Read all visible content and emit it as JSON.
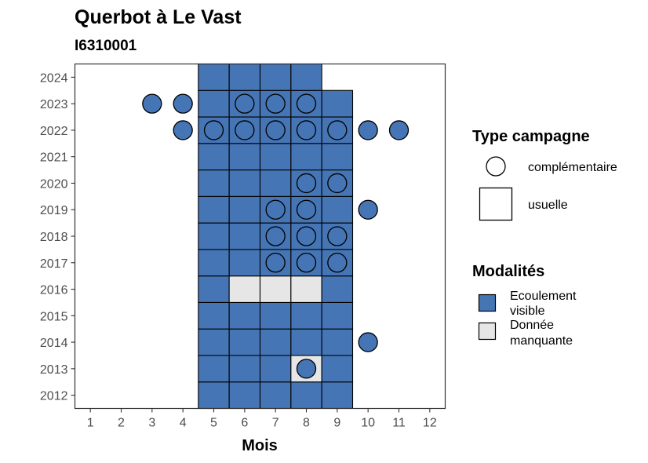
{
  "chart_data": {
    "type": "heatmap",
    "title": "Querbot à Le Vast",
    "subtitle": "I6310001",
    "xlabel": "Mois",
    "ylabel": "",
    "x_ticks": [
      1,
      2,
      3,
      4,
      5,
      6,
      7,
      8,
      9,
      10,
      11,
      12
    ],
    "y_ticks": [
      2012,
      2013,
      2014,
      2015,
      2016,
      2017,
      2018,
      2019,
      2020,
      2021,
      2022,
      2023,
      2024
    ],
    "xlim": [
      0.5,
      12.5
    ],
    "ylim": [
      2011.5,
      2024.5
    ],
    "grid": false,
    "colors": {
      "Ecoulement visible": "#4575b4",
      "Donnée manquante": "#e6e6e6"
    },
    "tiles": [
      {
        "year": 2012,
        "month": 5,
        "modalite": "Ecoulement visible"
      },
      {
        "year": 2012,
        "month": 6,
        "modalite": "Ecoulement visible"
      },
      {
        "year": 2012,
        "month": 7,
        "modalite": "Ecoulement visible"
      },
      {
        "year": 2012,
        "month": 8,
        "modalite": "Ecoulement visible"
      },
      {
        "year": 2012,
        "month": 9,
        "modalite": "Ecoulement visible"
      },
      {
        "year": 2013,
        "month": 5,
        "modalite": "Ecoulement visible"
      },
      {
        "year": 2013,
        "month": 6,
        "modalite": "Ecoulement visible"
      },
      {
        "year": 2013,
        "month": 7,
        "modalite": "Ecoulement visible"
      },
      {
        "year": 2013,
        "month": 8,
        "modalite": "Donnée manquante"
      },
      {
        "year": 2013,
        "month": 9,
        "modalite": "Ecoulement visible"
      },
      {
        "year": 2014,
        "month": 5,
        "modalite": "Ecoulement visible"
      },
      {
        "year": 2014,
        "month": 6,
        "modalite": "Ecoulement visible"
      },
      {
        "year": 2014,
        "month": 7,
        "modalite": "Ecoulement visible"
      },
      {
        "year": 2014,
        "month": 8,
        "modalite": "Ecoulement visible"
      },
      {
        "year": 2014,
        "month": 9,
        "modalite": "Ecoulement visible"
      },
      {
        "year": 2015,
        "month": 5,
        "modalite": "Ecoulement visible"
      },
      {
        "year": 2015,
        "month": 6,
        "modalite": "Ecoulement visible"
      },
      {
        "year": 2015,
        "month": 7,
        "modalite": "Ecoulement visible"
      },
      {
        "year": 2015,
        "month": 8,
        "modalite": "Ecoulement visible"
      },
      {
        "year": 2015,
        "month": 9,
        "modalite": "Ecoulement visible"
      },
      {
        "year": 2016,
        "month": 5,
        "modalite": "Ecoulement visible"
      },
      {
        "year": 2016,
        "month": 6,
        "modalite": "Donnée manquante"
      },
      {
        "year": 2016,
        "month": 7,
        "modalite": "Donnée manquante"
      },
      {
        "year": 2016,
        "month": 8,
        "modalite": "Donnée manquante"
      },
      {
        "year": 2016,
        "month": 9,
        "modalite": "Ecoulement visible"
      },
      {
        "year": 2017,
        "month": 5,
        "modalite": "Ecoulement visible"
      },
      {
        "year": 2017,
        "month": 6,
        "modalite": "Ecoulement visible"
      },
      {
        "year": 2017,
        "month": 7,
        "modalite": "Ecoulement visible"
      },
      {
        "year": 2017,
        "month": 8,
        "modalite": "Ecoulement visible"
      },
      {
        "year": 2017,
        "month": 9,
        "modalite": "Ecoulement visible"
      },
      {
        "year": 2018,
        "month": 5,
        "modalite": "Ecoulement visible"
      },
      {
        "year": 2018,
        "month": 6,
        "modalite": "Ecoulement visible"
      },
      {
        "year": 2018,
        "month": 7,
        "modalite": "Ecoulement visible"
      },
      {
        "year": 2018,
        "month": 8,
        "modalite": "Ecoulement visible"
      },
      {
        "year": 2018,
        "month": 9,
        "modalite": "Ecoulement visible"
      },
      {
        "year": 2019,
        "month": 5,
        "modalite": "Ecoulement visible"
      },
      {
        "year": 2019,
        "month": 6,
        "modalite": "Ecoulement visible"
      },
      {
        "year": 2019,
        "month": 7,
        "modalite": "Ecoulement visible"
      },
      {
        "year": 2019,
        "month": 8,
        "modalite": "Ecoulement visible"
      },
      {
        "year": 2019,
        "month": 9,
        "modalite": "Ecoulement visible"
      },
      {
        "year": 2020,
        "month": 5,
        "modalite": "Ecoulement visible"
      },
      {
        "year": 2020,
        "month": 6,
        "modalite": "Ecoulement visible"
      },
      {
        "year": 2020,
        "month": 7,
        "modalite": "Ecoulement visible"
      },
      {
        "year": 2020,
        "month": 8,
        "modalite": "Ecoulement visible"
      },
      {
        "year": 2020,
        "month": 9,
        "modalite": "Ecoulement visible"
      },
      {
        "year": 2021,
        "month": 5,
        "modalite": "Ecoulement visible"
      },
      {
        "year": 2021,
        "month": 6,
        "modalite": "Ecoulement visible"
      },
      {
        "year": 2021,
        "month": 7,
        "modalite": "Ecoulement visible"
      },
      {
        "year": 2021,
        "month": 8,
        "modalite": "Ecoulement visible"
      },
      {
        "year": 2021,
        "month": 9,
        "modalite": "Ecoulement visible"
      },
      {
        "year": 2022,
        "month": 5,
        "modalite": "Ecoulement visible"
      },
      {
        "year": 2022,
        "month": 6,
        "modalite": "Ecoulement visible"
      },
      {
        "year": 2022,
        "month": 7,
        "modalite": "Ecoulement visible"
      },
      {
        "year": 2022,
        "month": 8,
        "modalite": "Ecoulement visible"
      },
      {
        "year": 2022,
        "month": 9,
        "modalite": "Ecoulement visible"
      },
      {
        "year": 2023,
        "month": 5,
        "modalite": "Ecoulement visible"
      },
      {
        "year": 2023,
        "month": 6,
        "modalite": "Ecoulement visible"
      },
      {
        "year": 2023,
        "month": 7,
        "modalite": "Ecoulement visible"
      },
      {
        "year": 2023,
        "month": 8,
        "modalite": "Ecoulement visible"
      },
      {
        "year": 2023,
        "month": 9,
        "modalite": "Ecoulement visible"
      },
      {
        "year": 2024,
        "month": 5,
        "modalite": "Ecoulement visible"
      },
      {
        "year": 2024,
        "month": 6,
        "modalite": "Ecoulement visible"
      },
      {
        "year": 2024,
        "month": 7,
        "modalite": "Ecoulement visible"
      },
      {
        "year": 2024,
        "month": 8,
        "modalite": "Ecoulement visible"
      }
    ],
    "points": [
      {
        "year": 2013,
        "month": 8,
        "modalite": "Ecoulement visible"
      },
      {
        "year": 2014,
        "month": 10,
        "modalite": "Ecoulement visible"
      },
      {
        "year": 2017,
        "month": 7,
        "modalite": "Ecoulement visible"
      },
      {
        "year": 2017,
        "month": 8,
        "modalite": "Ecoulement visible"
      },
      {
        "year": 2017,
        "month": 9,
        "modalite": "Ecoulement visible"
      },
      {
        "year": 2018,
        "month": 7,
        "modalite": "Ecoulement visible"
      },
      {
        "year": 2018,
        "month": 8,
        "modalite": "Ecoulement visible"
      },
      {
        "year": 2018,
        "month": 9,
        "modalite": "Ecoulement visible"
      },
      {
        "year": 2019,
        "month": 7,
        "modalite": "Ecoulement visible"
      },
      {
        "year": 2019,
        "month": 8,
        "modalite": "Ecoulement visible"
      },
      {
        "year": 2019,
        "month": 10,
        "modalite": "Ecoulement visible"
      },
      {
        "year": 2020,
        "month": 8,
        "modalite": "Ecoulement visible"
      },
      {
        "year": 2020,
        "month": 9,
        "modalite": "Ecoulement visible"
      },
      {
        "year": 2022,
        "month": 4,
        "modalite": "Ecoulement visible"
      },
      {
        "year": 2022,
        "month": 5,
        "modalite": "Ecoulement visible"
      },
      {
        "year": 2022,
        "month": 6,
        "modalite": "Ecoulement visible"
      },
      {
        "year": 2022,
        "month": 7,
        "modalite": "Ecoulement visible"
      },
      {
        "year": 2022,
        "month": 8,
        "modalite": "Ecoulement visible"
      },
      {
        "year": 2022,
        "month": 9,
        "modalite": "Ecoulement visible"
      },
      {
        "year": 2022,
        "month": 10,
        "modalite": "Ecoulement visible"
      },
      {
        "year": 2022,
        "month": 11,
        "modalite": "Ecoulement visible"
      },
      {
        "year": 2023,
        "month": 3,
        "modalite": "Ecoulement visible"
      },
      {
        "year": 2023,
        "month": 4,
        "modalite": "Ecoulement visible"
      },
      {
        "year": 2023,
        "month": 6,
        "modalite": "Ecoulement visible"
      },
      {
        "year": 2023,
        "month": 7,
        "modalite": "Ecoulement visible"
      },
      {
        "year": 2023,
        "month": 8,
        "modalite": "Ecoulement visible"
      }
    ],
    "legend": {
      "placement": "right",
      "shape_title": "Type campagne",
      "shape_entries": [
        {
          "label": "complémentaire",
          "shape": "circle"
        },
        {
          "label": "usuelle",
          "shape": "square"
        }
      ],
      "fill_title": "Modalités",
      "fill_entries": [
        {
          "line1": "Ecoulement",
          "line2": "visible",
          "color": "#4575b4"
        },
        {
          "line1": "Donnée",
          "line2": "manquante",
          "color": "#e6e6e6"
        }
      ]
    }
  }
}
